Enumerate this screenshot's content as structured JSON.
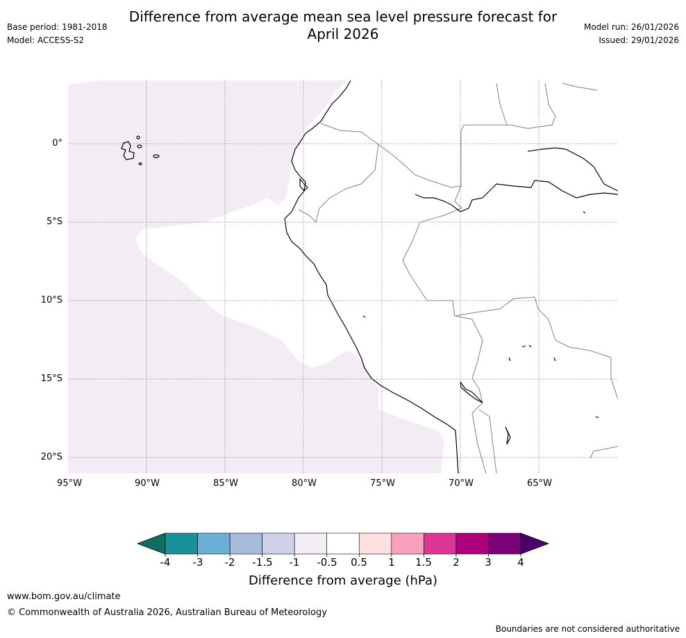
{
  "header": {
    "title_line1": "Difference from average mean sea level pressure forecast for",
    "title_line2": "April 2026",
    "base_period": "Base period: 1981-2018",
    "model": "Model: ACCESS-S2",
    "model_run": "Model run: 26/01/2026",
    "issued": "Issued: 29/01/2026"
  },
  "map": {
    "lat_labels": [
      "0°",
      "5°S",
      "10°S",
      "15°S",
      "20°S"
    ],
    "lon_labels": [
      "95°W",
      "90°W",
      "85°W",
      "80°W",
      "75°W",
      "70°W",
      "65°W"
    ],
    "fill_colors": {
      "slightly_positive": "#f4ecf5",
      "neutral": "#ffffff",
      "coast": "#000000",
      "border": "#808080"
    }
  },
  "colorbar": {
    "label": "Difference from average (hPa)",
    "ticks": [
      "-4",
      "-3",
      "-2",
      "-1.5",
      "-1",
      "-0.5",
      "0.5",
      "1",
      "1.5",
      "2",
      "3",
      "4"
    ],
    "colors": [
      "#0e6e63",
      "#1a9199",
      "#6baed6",
      "#a9bbdb",
      "#cfd0e5",
      "#f4ecf5",
      "#ffffff",
      "#fde0e0",
      "#f9a0bd",
      "#dd3497",
      "#ae017e",
      "#7a0177",
      "#49006a"
    ]
  },
  "footer": {
    "url": "www.bom.gov.au/climate",
    "copyright": "© Commonwealth of Australia 2026, Australian Bureau of Meteorology",
    "disclaimer": "Boundaries are not considered authoritative"
  }
}
